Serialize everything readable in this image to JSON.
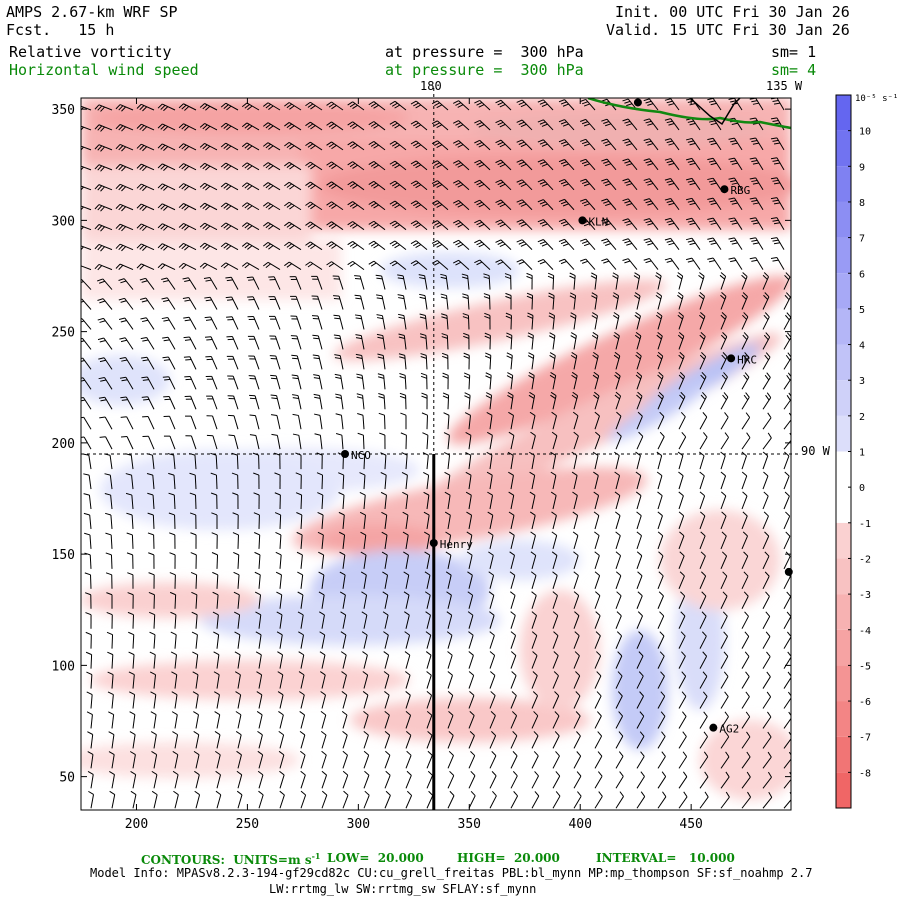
{
  "header": {
    "model": "AMPS 2.67-km WRF SP",
    "fcst": "Fcst.   15 h",
    "init": "Init. 00 UTC Fri 30 Jan 26",
    "valid": "Valid. 15 UTC Fri 30 Jan 26",
    "field1": {
      "name": "Relative vorticity",
      "pressure": "at pressure =  300 hPa",
      "sm": "sm= 1"
    },
    "field2": {
      "name": "Horizontal wind speed",
      "pressure": "at pressure =  300 hPa",
      "sm": "sm= 4"
    }
  },
  "map": {
    "lon_top_left": "180",
    "lon_top_right": "135 W",
    "lon_right": "90 W",
    "stations": [
      {
        "name": "RBG",
        "x": 465,
        "y": 314
      },
      {
        "name": "KLN",
        "x": 401,
        "y": 300
      },
      {
        "name": "HRC",
        "x": 468,
        "y": 238
      },
      {
        "name": "NCO",
        "x": 294,
        "y": 195
      },
      {
        "name": "Henry",
        "x": 334,
        "y": 155
      },
      {
        "name": "AG2",
        "x": 460,
        "y": 72
      },
      {
        "name": "",
        "x": 494,
        "y": 142
      },
      {
        "name": "",
        "x": 426,
        "y": 353
      }
    ]
  },
  "chart_data": {
    "type": "heatmap",
    "title": "Relative vorticity / Horizontal wind speed at 300 hPa",
    "xlim": [
      175,
      495
    ],
    "ylim": [
      35,
      355
    ],
    "xticks": [
      200,
      250,
      300,
      350,
      400,
      450
    ],
    "yticks": [
      50,
      100,
      150,
      200,
      250,
      300,
      350
    ],
    "colorbar": {
      "units": "10⁻⁵ s⁻¹",
      "ticks": [
        10,
        9,
        8,
        7,
        6,
        5,
        4,
        3,
        2,
        1,
        0,
        -1,
        -2,
        -3,
        -4,
        -5,
        -6,
        -7,
        -8
      ],
      "range": [
        -9,
        11
      ]
    },
    "cross_section_x": 334,
    "cross_section_y": [
      35,
      195
    ],
    "lat_line_y": 195,
    "lon_line_x": 334
  },
  "footer": {
    "contours": "CONTOURS:  UNITS=m s",
    "contours_sup": "-1",
    "low": "LOW=  20.000",
    "high": "HIGH=  20.000",
    "interval": "INTERVAL=   10.000",
    "info1": "Model Info: MPASv8.2.3-194-gf29cd82c CU:cu_grell_freitas PBL:bl_mynn MP:mp_thompson SF:sf_noahmp 2.7",
    "info2": "LW:rrtmg_lw SW:rrtmg_sw SFLAY:sf_mynn"
  }
}
